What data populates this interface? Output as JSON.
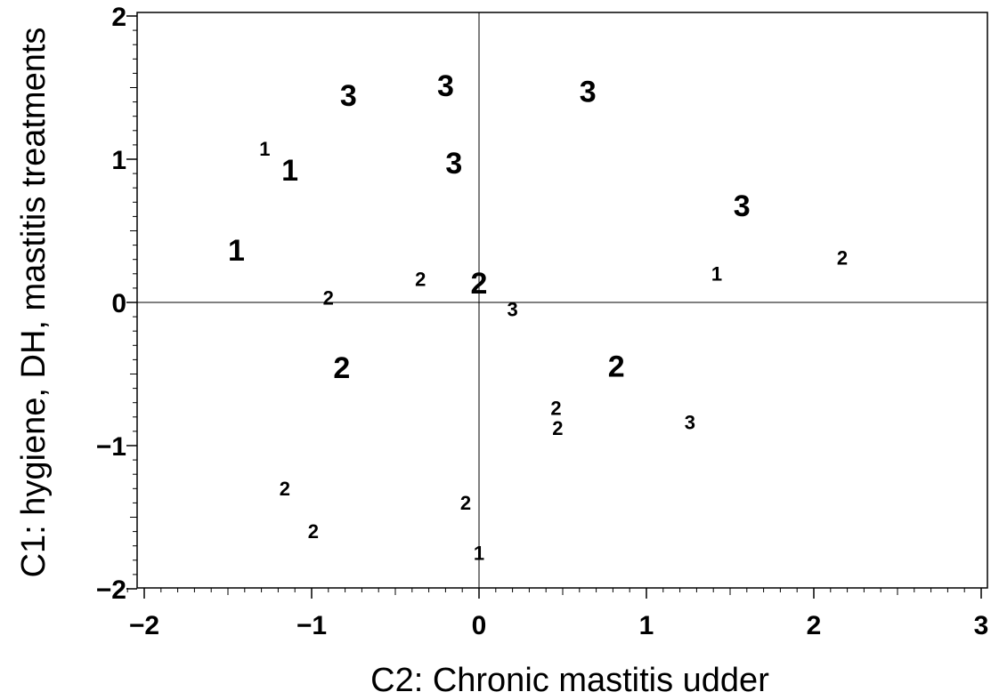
{
  "chart_data": {
    "type": "scatter",
    "title": "",
    "xlabel": "C2: Chronic mastitis udder",
    "ylabel": "C1: hygiene, DH, mastitis treatments",
    "xlim": [
      -2.1,
      3.0
    ],
    "ylim": [
      -2.0,
      2.0
    ],
    "xticks": [
      -2,
      -1,
      0,
      1,
      2,
      3
    ],
    "xtick_labels": [
      "−2",
      "−1",
      "0",
      "1",
      "2",
      "3"
    ],
    "yticks": [
      -2,
      -1,
      0,
      1,
      2
    ],
    "ytick_labels": [
      "−2",
      "−1",
      "0",
      "1",
      "2"
    ],
    "reference_lines": {
      "x": 0,
      "y": 0
    },
    "grid": false,
    "legend": "none",
    "points": [
      {
        "x": -0.78,
        "y": 1.44,
        "label": "3",
        "size": "large"
      },
      {
        "x": -0.2,
        "y": 1.51,
        "label": "3",
        "size": "large"
      },
      {
        "x": 0.65,
        "y": 1.47,
        "label": "3",
        "size": "large"
      },
      {
        "x": -0.15,
        "y": 0.97,
        "label": "3",
        "size": "large"
      },
      {
        "x": 1.57,
        "y": 0.67,
        "label": "3",
        "size": "large"
      },
      {
        "x": -1.28,
        "y": 1.07,
        "label": "1",
        "size": "small"
      },
      {
        "x": -1.13,
        "y": 0.92,
        "label": "1",
        "size": "large"
      },
      {
        "x": -1.45,
        "y": 0.36,
        "label": "1",
        "size": "large"
      },
      {
        "x": 2.17,
        "y": 0.31,
        "label": "2",
        "size": "small"
      },
      {
        "x": 1.42,
        "y": 0.2,
        "label": "1",
        "size": "small"
      },
      {
        "x": -0.35,
        "y": 0.16,
        "label": "2",
        "size": "small"
      },
      {
        "x": 0.0,
        "y": 0.13,
        "label": "2",
        "size": "large"
      },
      {
        "x": -0.9,
        "y": 0.03,
        "label": "2",
        "size": "small"
      },
      {
        "x": 0.2,
        "y": -0.05,
        "label": "3",
        "size": "small"
      },
      {
        "x": -0.82,
        "y": -0.46,
        "label": "2",
        "size": "large"
      },
      {
        "x": 0.82,
        "y": -0.45,
        "label": "2",
        "size": "large"
      },
      {
        "x": 0.46,
        "y": -0.74,
        "label": "2",
        "size": "small"
      },
      {
        "x": 0.47,
        "y": -0.88,
        "label": "2",
        "size": "small"
      },
      {
        "x": 1.26,
        "y": -0.84,
        "label": "3",
        "size": "small"
      },
      {
        "x": -1.16,
        "y": -1.3,
        "label": "2",
        "size": "small"
      },
      {
        "x": -0.08,
        "y": -1.4,
        "label": "2",
        "size": "small"
      },
      {
        "x": -0.99,
        "y": -1.6,
        "label": "2",
        "size": "small"
      },
      {
        "x": 0.0,
        "y": -1.75,
        "label": "1",
        "size": "small"
      }
    ]
  }
}
